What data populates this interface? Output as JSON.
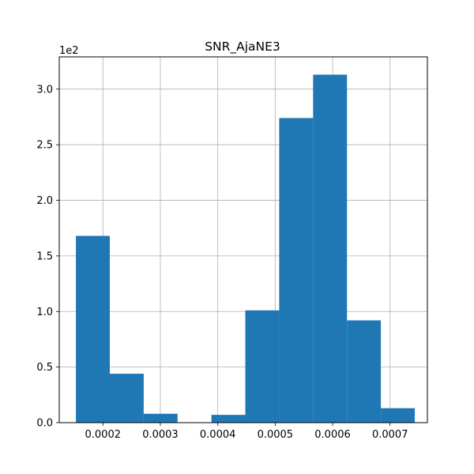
{
  "chart_data": {
    "type": "bar",
    "title": "SNR_AjaNE3",
    "xlabel": "",
    "ylabel": "",
    "y_offset_label": "1e2",
    "grid": true,
    "bar_color": "#1f77b4",
    "grid_color": "#b0b0b0",
    "xlim": [
      0.000124,
      0.000765
    ],
    "ylim": [
      0,
      3.29
    ],
    "x_ticks": [
      0.0002,
      0.0003,
      0.0004,
      0.0005,
      0.0006,
      0.0007
    ],
    "x_tick_labels": [
      "0.0002",
      "0.0003",
      "0.0004",
      "0.0005",
      "0.0006",
      "0.0007"
    ],
    "y_ticks": [
      0,
      0.5,
      1.0,
      1.5,
      2.0,
      2.5,
      3.0
    ],
    "y_tick_labels": [
      "0.0",
      "0.5",
      "1.0",
      "1.5",
      "2.0",
      "2.5",
      "3.0"
    ],
    "bins": [
      {
        "x0": 0.000153,
        "x1": 0.000212,
        "value": 1.68
      },
      {
        "x0": 0.000212,
        "x1": 0.000271,
        "value": 0.44
      },
      {
        "x0": 0.000271,
        "x1": 0.00033,
        "value": 0.08
      },
      {
        "x0": 0.00033,
        "x1": 0.000389,
        "value": 0.0
      },
      {
        "x0": 0.000389,
        "x1": 0.000448,
        "value": 0.07
      },
      {
        "x0": 0.000448,
        "x1": 0.000507,
        "value": 1.01
      },
      {
        "x0": 0.000507,
        "x1": 0.000566,
        "value": 2.74
      },
      {
        "x0": 0.000566,
        "x1": 0.000625,
        "value": 3.13
      },
      {
        "x0": 0.000625,
        "x1": 0.000684,
        "value": 0.92
      },
      {
        "x0": 0.000684,
        "x1": 0.000743,
        "value": 0.13
      }
    ]
  }
}
